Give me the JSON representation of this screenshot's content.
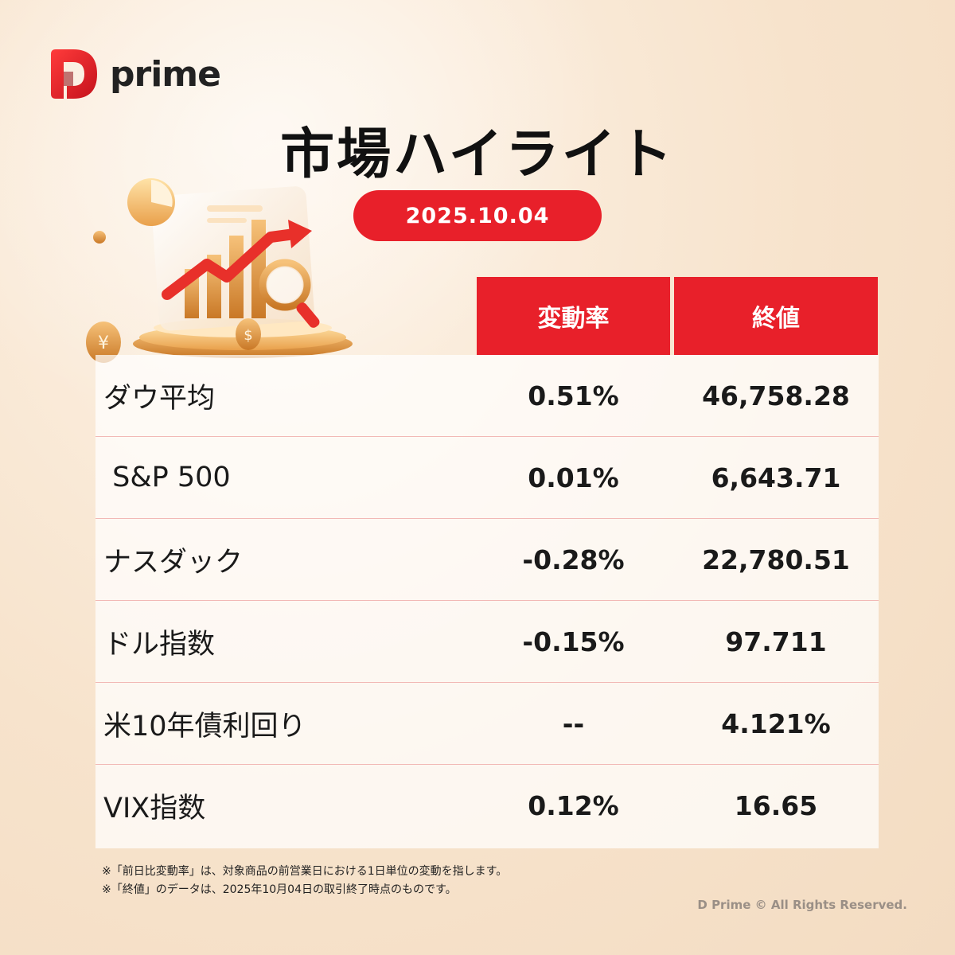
{
  "brand": {
    "logo_text": "prime",
    "colors": {
      "accent": "#e8202a",
      "text": "#111111",
      "divider": "#f2b9b6"
    }
  },
  "title": "市場ハイライト",
  "date": "2025.10.04",
  "table": {
    "headers": {
      "change": "変動率",
      "close": "終値"
    },
    "rows": [
      {
        "name": "ダウ平均",
        "change": "0.51%",
        "close": "46,758.28"
      },
      {
        "name": " S&P 500",
        "change": "0.01%",
        "close": "6,643.71"
      },
      {
        "name": "ナスダック",
        "change": "-0.28%",
        "close": "22,780.51"
      },
      {
        "name": "ドル指数",
        "change": "-0.15%",
        "close": "97.711"
      },
      {
        "name": "米10年債利回り",
        "change": "--",
        "close": "4.121%"
      },
      {
        "name": "VIX指数",
        "change": "0.12%",
        "close": "16.65"
      }
    ]
  },
  "notes": [
    "※「前日比変動率」は、対象商品の前営業日における1日単位の変動を指します。",
    "※「終値」のデータは、2025年10月04日の取引終了時点のものです。"
  ],
  "copyright": "D Prime © All Rights Reserved.",
  "icons": {
    "logo": "d-prime-logo-icon",
    "illustration": "growth-chart-illustration-icon"
  }
}
